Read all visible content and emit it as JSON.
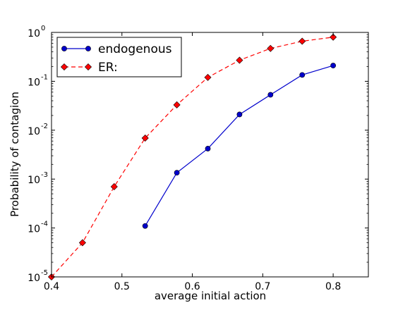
{
  "chart_data": {
    "type": "line",
    "title": "",
    "xlabel": "average initial action",
    "ylabel": "Probability of contagion",
    "xlim": [
      0.4,
      0.85
    ],
    "ylim": [
      1e-05,
      1
    ],
    "yscale": "log",
    "grid": false,
    "legend_placement": "top-left",
    "x_ticks": [
      {
        "value": 0.4,
        "label": "0.4"
      },
      {
        "value": 0.5,
        "label": "0.5"
      },
      {
        "value": 0.6,
        "label": "0.6"
      },
      {
        "value": 0.7,
        "label": "0.7"
      },
      {
        "value": 0.8,
        "label": "0.8"
      }
    ],
    "y_ticks": [
      {
        "exp": -5,
        "base": "10",
        "sup": "-5"
      },
      {
        "exp": -4,
        "base": "10",
        "sup": "-4"
      },
      {
        "exp": -3,
        "base": "10",
        "sup": "-3"
      },
      {
        "exp": -2,
        "base": "10",
        "sup": "-2"
      },
      {
        "exp": -1,
        "base": "10",
        "sup": "-1"
      },
      {
        "exp": 0,
        "base": "10",
        "sup": "0"
      }
    ],
    "series": [
      {
        "name": "endogenous",
        "color": "#0000cc",
        "line_style": "solid",
        "marker": "circle",
        "marker_fill": "#0000cc",
        "x": [
          0.533,
          0.578,
          0.622,
          0.667,
          0.711,
          0.756,
          0.8
        ],
        "y": [
          0.00011,
          0.00135,
          0.0042,
          0.021,
          0.053,
          0.135,
          0.21
        ]
      },
      {
        "name": "ER:",
        "color": "#ff0000",
        "line_style": "dashed",
        "marker": "diamond",
        "marker_fill": "#ff0000",
        "x": [
          0.4,
          0.444,
          0.489,
          0.533,
          0.578,
          0.622,
          0.667,
          0.711,
          0.756,
          0.8
        ],
        "y": [
          1e-05,
          5e-05,
          0.0007,
          0.0069,
          0.033,
          0.12,
          0.27,
          0.47,
          0.66,
          0.8
        ]
      }
    ]
  }
}
